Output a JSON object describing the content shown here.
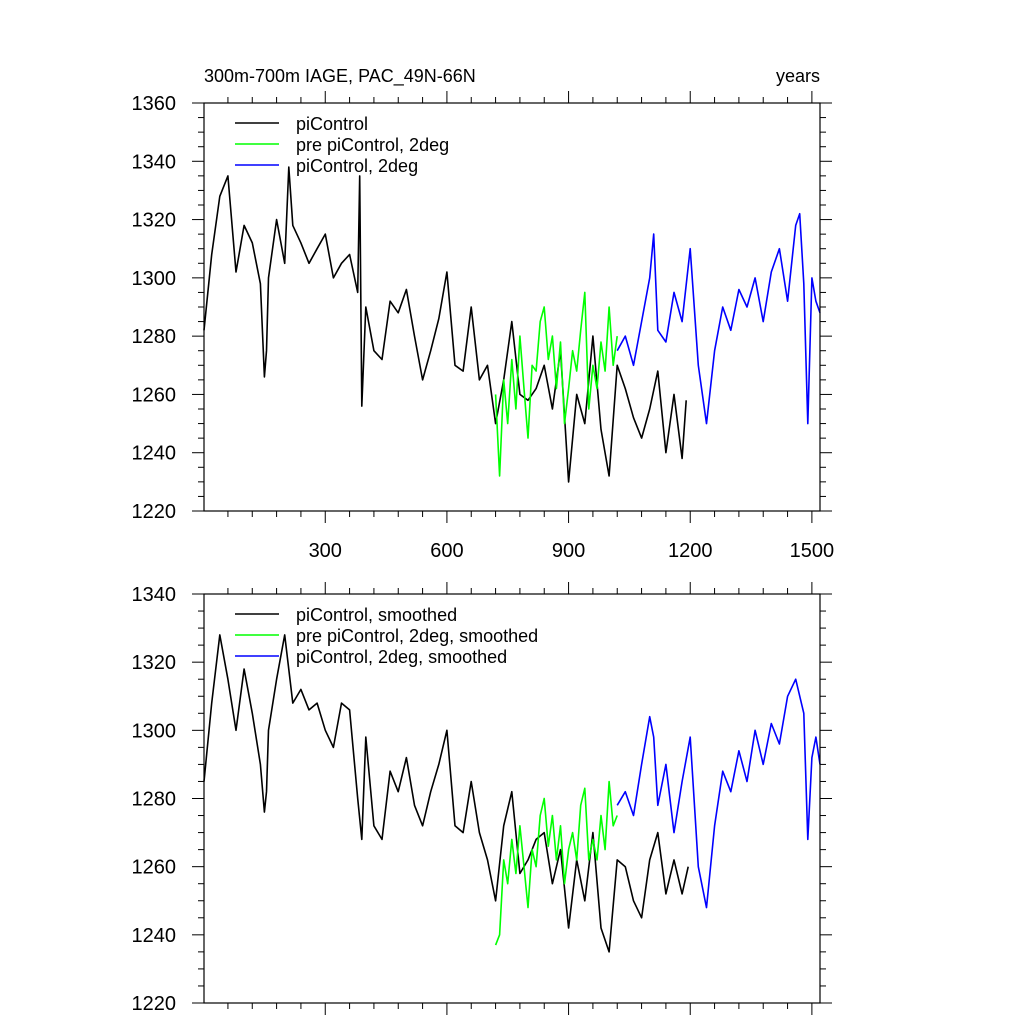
{
  "colors": {
    "black": "#000000",
    "green": "#00ff00",
    "blue": "#0000ff"
  },
  "chart_data": [
    {
      "type": "line",
      "title": "300m-700m IAGE, PAC_49N-66N",
      "units_label": "years",
      "xlim": [
        1,
        1520
      ],
      "ylim": [
        1220,
        1360
      ],
      "x_ticks": [
        300,
        600,
        900,
        1200,
        1500
      ],
      "x_tick_labels": [
        "300",
        "600",
        "900",
        "1200",
        "1500"
      ],
      "y_ticks": [
        1220,
        1240,
        1260,
        1280,
        1300,
        1320,
        1340,
        1360
      ],
      "y_tick_labels": [
        "1220",
        "1240",
        "1260",
        "1280",
        "1300",
        "1320",
        "1340",
        "1360"
      ],
      "legend_position": "top-left",
      "series": [
        {
          "name": "piControl",
          "color": "#000000",
          "x": [
            1,
            20,
            40,
            60,
            80,
            100,
            120,
            140,
            150,
            155,
            160,
            180,
            200,
            210,
            220,
            240,
            260,
            280,
            300,
            320,
            340,
            360,
            380,
            385,
            390,
            400,
            420,
            440,
            460,
            480,
            500,
            520,
            540,
            560,
            580,
            600,
            620,
            640,
            660,
            680,
            700,
            720,
            740,
            760,
            780,
            800,
            820,
            840,
            860,
            880,
            900,
            920,
            940,
            960,
            980,
            1000,
            1020,
            1040,
            1060,
            1080,
            1100,
            1120,
            1140,
            1160,
            1180,
            1190
          ],
          "values": [
            1282,
            1308,
            1328,
            1335,
            1302,
            1318,
            1312,
            1298,
            1266,
            1275,
            1300,
            1320,
            1305,
            1338,
            1318,
            1312,
            1305,
            1310,
            1315,
            1300,
            1305,
            1308,
            1295,
            1335,
            1256,
            1290,
            1275,
            1272,
            1292,
            1288,
            1296,
            1280,
            1265,
            1275,
            1286,
            1302,
            1270,
            1268,
            1290,
            1265,
            1270,
            1250,
            1265,
            1285,
            1260,
            1258,
            1262,
            1270,
            1255,
            1275,
            1230,
            1260,
            1250,
            1280,
            1248,
            1232,
            1270,
            1262,
            1252,
            1245,
            1255,
            1268,
            1240,
            1260,
            1238,
            1258
          ]
        },
        {
          "name": "pre piControl, 2deg",
          "color": "#00ff00",
          "x": [
            720,
            730,
            740,
            750,
            760,
            770,
            780,
            790,
            800,
            810,
            820,
            830,
            840,
            850,
            860,
            870,
            880,
            890,
            900,
            910,
            920,
            930,
            940,
            950,
            960,
            970,
            980,
            990,
            1000,
            1010,
            1020
          ],
          "values": [
            1260,
            1232,
            1265,
            1250,
            1272,
            1255,
            1280,
            1262,
            1245,
            1270,
            1268,
            1285,
            1290,
            1272,
            1280,
            1262,
            1278,
            1250,
            1262,
            1275,
            1268,
            1282,
            1295,
            1255,
            1270,
            1262,
            1278,
            1268,
            1290,
            1270,
            1280
          ]
        },
        {
          "name": "piControl, 2deg",
          "color": "#0000ff",
          "x": [
            1020,
            1040,
            1060,
            1080,
            1100,
            1110,
            1120,
            1140,
            1160,
            1180,
            1200,
            1220,
            1240,
            1260,
            1280,
            1300,
            1320,
            1340,
            1360,
            1380,
            1400,
            1420,
            1440,
            1460,
            1470,
            1480,
            1490,
            1500,
            1510,
            1520
          ],
          "values": [
            1275,
            1280,
            1270,
            1285,
            1300,
            1315,
            1282,
            1278,
            1295,
            1285,
            1310,
            1270,
            1250,
            1275,
            1290,
            1282,
            1296,
            1290,
            1300,
            1285,
            1302,
            1310,
            1292,
            1318,
            1322,
            1298,
            1250,
            1300,
            1292,
            1288
          ]
        }
      ]
    },
    {
      "type": "line",
      "xlim": [
        1,
        1520
      ],
      "ylim": [
        1220,
        1340
      ],
      "x_ticks": [
        300,
        600,
        900,
        1200,
        1500
      ],
      "y_ticks": [
        1220,
        1240,
        1260,
        1280,
        1300,
        1320,
        1340
      ],
      "y_tick_labels": [
        "1220",
        "1240",
        "1260",
        "1280",
        "1300",
        "1320",
        "1340"
      ],
      "legend_position": "top-left",
      "series": [
        {
          "name": "piControl, smoothed",
          "color": "#000000",
          "x": [
            1,
            20,
            40,
            60,
            80,
            100,
            120,
            140,
            150,
            155,
            160,
            180,
            200,
            220,
            240,
            260,
            280,
            300,
            320,
            340,
            360,
            380,
            390,
            400,
            420,
            440,
            460,
            480,
            500,
            520,
            540,
            560,
            580,
            600,
            620,
            640,
            660,
            680,
            700,
            720,
            740,
            760,
            780,
            800,
            820,
            840,
            860,
            880,
            900,
            920,
            940,
            960,
            980,
            1000,
            1020,
            1040,
            1060,
            1080,
            1100,
            1120,
            1140,
            1160,
            1180,
            1195
          ],
          "values": [
            1285,
            1308,
            1328,
            1315,
            1300,
            1318,
            1305,
            1290,
            1276,
            1282,
            1300,
            1315,
            1328,
            1308,
            1312,
            1306,
            1308,
            1300,
            1295,
            1308,
            1306,
            1280,
            1268,
            1298,
            1272,
            1268,
            1288,
            1282,
            1292,
            1278,
            1272,
            1282,
            1290,
            1300,
            1272,
            1270,
            1285,
            1270,
            1262,
            1250,
            1272,
            1282,
            1258,
            1262,
            1268,
            1270,
            1255,
            1265,
            1242,
            1262,
            1250,
            1270,
            1242,
            1235,
            1262,
            1260,
            1250,
            1245,
            1262,
            1270,
            1252,
            1262,
            1252,
            1260
          ]
        },
        {
          "name": "pre piControl, 2deg, smoothed",
          "color": "#00ff00",
          "x": [
            720,
            730,
            740,
            750,
            760,
            770,
            780,
            790,
            800,
            810,
            820,
            830,
            840,
            850,
            860,
            870,
            880,
            890,
            900,
            910,
            920,
            930,
            940,
            950,
            960,
            970,
            980,
            990,
            1000,
            1010,
            1020
          ],
          "values": [
            1237,
            1240,
            1262,
            1255,
            1268,
            1258,
            1272,
            1260,
            1248,
            1265,
            1260,
            1275,
            1280,
            1266,
            1275,
            1262,
            1272,
            1255,
            1265,
            1270,
            1262,
            1278,
            1283,
            1262,
            1268,
            1262,
            1275,
            1265,
            1285,
            1272,
            1275
          ]
        },
        {
          "name": "piControl, 2deg, smoothed",
          "color": "#0000ff",
          "x": [
            1020,
            1040,
            1060,
            1080,
            1100,
            1110,
            1120,
            1140,
            1160,
            1180,
            1200,
            1220,
            1240,
            1260,
            1280,
            1300,
            1320,
            1340,
            1360,
            1380,
            1400,
            1420,
            1440,
            1460,
            1480,
            1490,
            1500,
            1510,
            1520
          ],
          "values": [
            1278,
            1282,
            1275,
            1290,
            1304,
            1298,
            1278,
            1290,
            1270,
            1285,
            1298,
            1260,
            1248,
            1272,
            1288,
            1282,
            1294,
            1285,
            1300,
            1290,
            1302,
            1296,
            1310,
            1315,
            1305,
            1268,
            1292,
            1298,
            1290
          ]
        }
      ]
    }
  ]
}
